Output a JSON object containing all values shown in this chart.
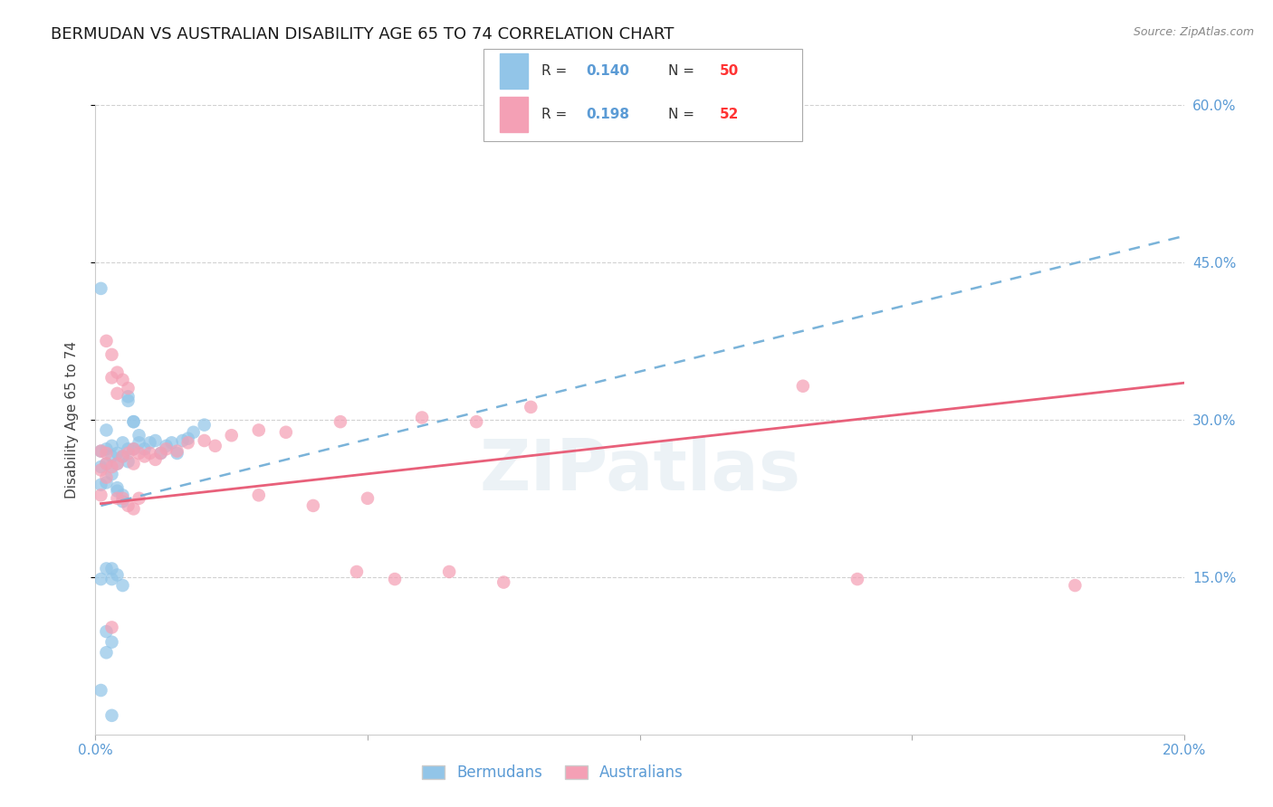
{
  "title": "BERMUDAN VS AUSTRALIAN DISABILITY AGE 65 TO 74 CORRELATION CHART",
  "source": "Source: ZipAtlas.com",
  "ylabel": "Disability Age 65 to 74",
  "xlim": [
    0.0,
    0.2
  ],
  "ylim": [
    0.0,
    0.6
  ],
  "bermuda_R": "0.140",
  "bermuda_N": "50",
  "australia_R": "0.198",
  "australia_N": "52",
  "bermuda_color": "#92c5e8",
  "australia_color": "#f4a0b5",
  "bermuda_line_color": "#7ab3d9",
  "australia_line_color": "#e8607a",
  "grid_color": "#cccccc",
  "background_color": "#ffffff",
  "axis_tick_color": "#5b9bd5",
  "legend_R_color": "#5b9bd5",
  "legend_N_color": "#ff3333",
  "title_fontsize": 13,
  "axis_label_fontsize": 11,
  "tick_fontsize": 11,
  "bermuda_trend": [
    0.0015,
    0.218,
    0.0015,
    0.218
  ],
  "bermuda_trend_x0": 0.001,
  "bermuda_trend_y0": 0.218,
  "bermuda_trend_x1": 0.2,
  "bermuda_trend_y1": 0.475,
  "australia_trend_x0": 0.001,
  "australia_trend_y0": 0.22,
  "australia_trend_x1": 0.2,
  "australia_trend_y1": 0.335,
  "bermuda_x": [
    0.001,
    0.001,
    0.001,
    0.001,
    0.002,
    0.002,
    0.002,
    0.002,
    0.002,
    0.003,
    0.003,
    0.003,
    0.003,
    0.003,
    0.004,
    0.004,
    0.004,
    0.004,
    0.005,
    0.005,
    0.005,
    0.005,
    0.006,
    0.006,
    0.006,
    0.007,
    0.007,
    0.008,
    0.008,
    0.009,
    0.01,
    0.011,
    0.012,
    0.013,
    0.014,
    0.015,
    0.016,
    0.017,
    0.018,
    0.02,
    0.001,
    0.001,
    0.002,
    0.003,
    0.004,
    0.005,
    0.006,
    0.007,
    0.002,
    0.003
  ],
  "bermuda_y": [
    0.27,
    0.255,
    0.238,
    0.042,
    0.29,
    0.272,
    0.258,
    0.24,
    0.098,
    0.275,
    0.265,
    0.248,
    0.148,
    0.088,
    0.268,
    0.258,
    0.235,
    0.152,
    0.278,
    0.265,
    0.228,
    0.142,
    0.272,
    0.26,
    0.318,
    0.272,
    0.298,
    0.278,
    0.285,
    0.272,
    0.278,
    0.28,
    0.268,
    0.275,
    0.278,
    0.268,
    0.28,
    0.282,
    0.288,
    0.295,
    0.425,
    0.148,
    0.158,
    0.158,
    0.232,
    0.222,
    0.322,
    0.298,
    0.078,
    0.018
  ],
  "australia_x": [
    0.001,
    0.001,
    0.001,
    0.002,
    0.002,
    0.002,
    0.002,
    0.003,
    0.003,
    0.003,
    0.003,
    0.004,
    0.004,
    0.004,
    0.004,
    0.005,
    0.005,
    0.005,
    0.006,
    0.006,
    0.006,
    0.007,
    0.007,
    0.007,
    0.008,
    0.008,
    0.009,
    0.01,
    0.011,
    0.012,
    0.013,
    0.015,
    0.017,
    0.02,
    0.022,
    0.025,
    0.03,
    0.03,
    0.035,
    0.04,
    0.045,
    0.048,
    0.05,
    0.055,
    0.06,
    0.065,
    0.07,
    0.075,
    0.08,
    0.13,
    0.14,
    0.18
  ],
  "australia_y": [
    0.27,
    0.252,
    0.228,
    0.268,
    0.258,
    0.245,
    0.375,
    0.362,
    0.34,
    0.255,
    0.102,
    0.345,
    0.325,
    0.258,
    0.225,
    0.338,
    0.265,
    0.225,
    0.33,
    0.268,
    0.218,
    0.272,
    0.258,
    0.215,
    0.268,
    0.225,
    0.265,
    0.268,
    0.262,
    0.268,
    0.272,
    0.27,
    0.278,
    0.28,
    0.275,
    0.285,
    0.29,
    0.228,
    0.288,
    0.218,
    0.298,
    0.155,
    0.225,
    0.148,
    0.302,
    0.155,
    0.298,
    0.145,
    0.312,
    0.332,
    0.148,
    0.142
  ]
}
